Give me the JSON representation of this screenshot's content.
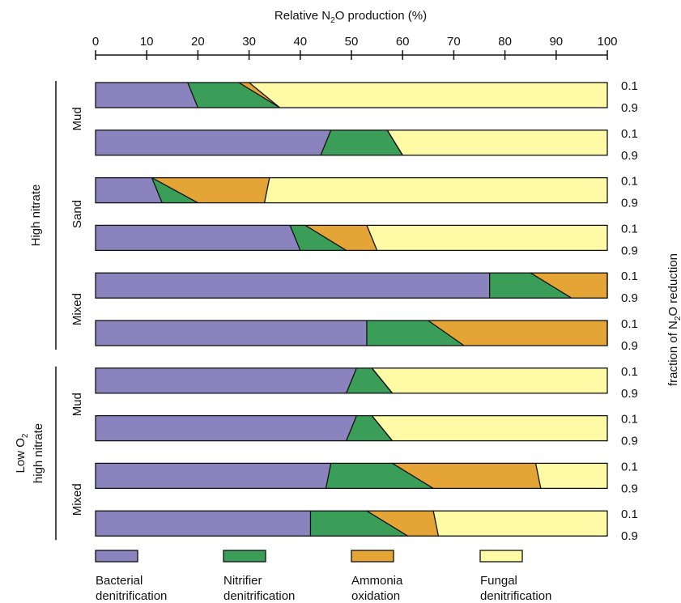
{
  "chart_data": {
    "type": "bar",
    "orientation": "horizontal",
    "stacked": true,
    "title": "",
    "xlabel": {
      "pre": "Relative N",
      "sub": "2",
      "post": "O production (%)"
    },
    "ylabel_right": {
      "pre": "fraction of N",
      "sub": "2",
      "post": "O reduction"
    },
    "xlim": [
      0,
      100
    ],
    "xticks": [
      "0",
      "10",
      "20",
      "30",
      "40",
      "50",
      "60",
      "70",
      "80",
      "90",
      "100"
    ],
    "grid": false,
    "colors": {
      "bacterial": "#8b83bd",
      "nitrifier": "#3a9e58",
      "ammonia": "#e5a436",
      "fungal": "#fffaa6"
    },
    "groups": [
      {
        "label": "High nitrate",
        "sub": "",
        "label_line2": ""
      },
      {
        "label": "Low O",
        "sub": "2",
        "label_line2": "high nitrate"
      }
    ],
    "sediments": [
      {
        "label": "Mud",
        "group": 0
      },
      {
        "label": "Sand",
        "group": 0
      },
      {
        "label": "Mixed",
        "group": 0
      },
      {
        "label": "Mud",
        "group": 1
      },
      {
        "label": "Mixed",
        "group": 1
      }
    ],
    "fraction_labels": [
      "0.1",
      "0.9"
    ],
    "bars": [
      {
        "sediment": 0,
        "top": [
          18,
          28,
          30
        ],
        "bottom": [
          20,
          36,
          36
        ]
      },
      {
        "sediment": 0,
        "top": [
          46,
          57,
          57
        ],
        "bottom": [
          44,
          60,
          60
        ]
      },
      {
        "sediment": 1,
        "top": [
          11,
          11,
          34
        ],
        "bottom": [
          13,
          20,
          33
        ]
      },
      {
        "sediment": 1,
        "top": [
          38,
          41,
          53
        ],
        "bottom": [
          40,
          49,
          55
        ]
      },
      {
        "sediment": 2,
        "top": [
          77,
          85,
          100
        ],
        "bottom": [
          77,
          93,
          100
        ]
      },
      {
        "sediment": 2,
        "top": [
          53,
          65,
          100
        ],
        "bottom": [
          53,
          72,
          100
        ]
      },
      {
        "sediment": 3,
        "top": [
          51,
          54,
          54
        ],
        "bottom": [
          49,
          58,
          58
        ]
      },
      {
        "sediment": 3,
        "top": [
          51,
          54,
          54
        ],
        "bottom": [
          49,
          58,
          58
        ]
      },
      {
        "sediment": 4,
        "top": [
          46,
          58,
          86
        ],
        "bottom": [
          45,
          66,
          87
        ]
      },
      {
        "sediment": 4,
        "top": [
          42,
          53,
          66
        ],
        "bottom": [
          42,
          61,
          67
        ]
      }
    ],
    "legend": [
      {
        "line1": "Bacterial",
        "line2": "denitrification",
        "color_key": "bacterial"
      },
      {
        "line1": "Nitrifier",
        "line2": "denitrification",
        "color_key": "nitrifier"
      },
      {
        "line1": "Ammonia",
        "line2": "oxidation",
        "color_key": "ammonia"
      },
      {
        "line1": "Fungal",
        "line2": "denitrification",
        "color_key": "fungal"
      }
    ],
    "legend_placement": "bottom"
  }
}
